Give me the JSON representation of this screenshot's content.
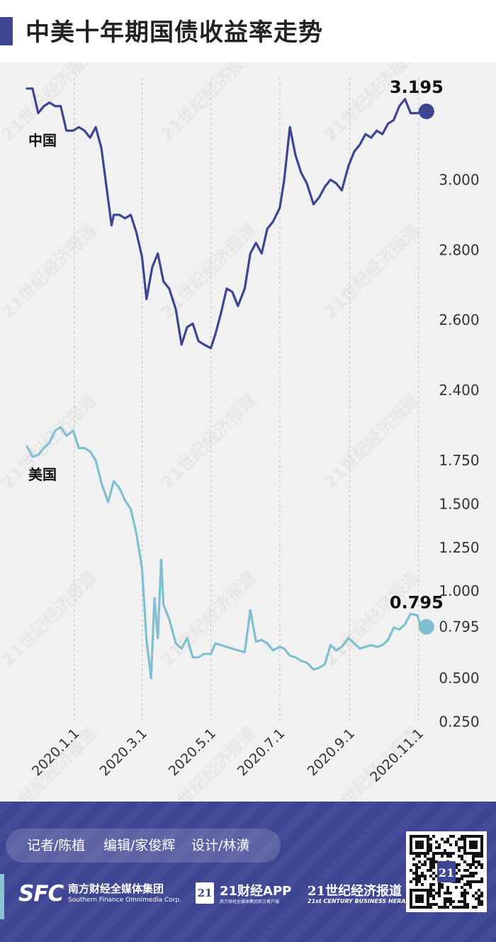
{
  "title": "中美十年期国债收益率走势",
  "credits": [
    "记者/陈植",
    "编辑/家俊辉",
    "设计/林潢"
  ],
  "logos": {
    "sfc_mark": "SFC",
    "sfc_cn": "南方财经全媒体集团",
    "sfc_en": "Southern Finance Omnimedia Corp.",
    "badge": "21",
    "app_name": "21财经APP",
    "app_sub": "南方财经全媒体集团官方客户端",
    "herald_cn": "21世纪经济报道",
    "herald_en": "21st CENTURY BUSINESS HERALD"
  },
  "watermark": "21世纪经济报道",
  "colors": {
    "china": "#3d4593",
    "us": "#7fbfd0",
    "header_accent": "#3d4593",
    "footer": "#3d4593",
    "panel": "#f1f1f1"
  },
  "chart_data": [
    {
      "type": "line",
      "series": [
        {
          "name": "中国",
          "x": [
            "2019-11-20",
            "2019-11-25",
            "2019-11-30",
            "2019-12-05",
            "2019-12-10",
            "2019-12-15",
            "2019-12-20",
            "2019-12-25",
            "2019-12-31",
            "2020-01-05",
            "2020-01-10",
            "2020-01-15",
            "2020-01-20",
            "2020-01-25",
            "2020-02-03",
            "2020-02-05",
            "2020-02-10",
            "2020-02-15",
            "2020-02-20",
            "2020-02-25",
            "2020-03-01",
            "2020-03-05",
            "2020-03-10",
            "2020-03-15",
            "2020-03-20",
            "2020-03-25",
            "2020-03-31",
            "2020-04-05",
            "2020-04-10",
            "2020-04-15",
            "2020-04-20",
            "2020-04-25",
            "2020-05-01",
            "2020-05-05",
            "2020-05-10",
            "2020-05-15",
            "2020-05-20",
            "2020-05-25",
            "2020-05-31",
            "2020-06-05",
            "2020-06-10",
            "2020-06-15",
            "2020-06-20",
            "2020-06-25",
            "2020-07-01",
            "2020-07-05",
            "2020-07-10",
            "2020-07-15",
            "2020-07-20",
            "2020-07-25",
            "2020-07-31",
            "2020-08-05",
            "2020-08-10",
            "2020-08-15",
            "2020-08-20",
            "2020-08-25",
            "2020-08-31",
            "2020-09-05",
            "2020-09-10",
            "2020-09-15",
            "2020-09-20",
            "2020-09-25",
            "2020-09-30",
            "2020-10-05",
            "2020-10-10",
            "2020-10-15",
            "2020-10-20",
            "2020-10-25",
            "2020-10-31",
            "2020-11-03"
          ],
          "values": [
            3.26,
            3.26,
            3.19,
            3.21,
            3.22,
            3.21,
            3.21,
            3.14,
            3.14,
            3.15,
            3.14,
            3.12,
            3.15,
            3.09,
            2.87,
            2.9,
            2.9,
            2.89,
            2.9,
            2.85,
            2.78,
            2.66,
            2.75,
            2.79,
            2.71,
            2.69,
            2.63,
            2.53,
            2.58,
            2.59,
            2.54,
            2.53,
            2.52,
            2.56,
            2.62,
            2.69,
            2.68,
            2.64,
            2.69,
            2.79,
            2.82,
            2.79,
            2.86,
            2.88,
            2.92,
            3.0,
            3.15,
            3.07,
            3.02,
            2.99,
            2.93,
            2.95,
            2.98,
            3.0,
            2.99,
            2.97,
            3.04,
            3.08,
            3.1,
            3.13,
            3.12,
            3.14,
            3.13,
            3.16,
            3.17,
            3.21,
            3.23,
            3.19,
            3.19,
            3.195
          ]
        }
      ],
      "end_label": "3.195",
      "y_ticks": [
        "3.000",
        "2.800",
        "2.600",
        "2.400"
      ],
      "y_tick_values": [
        3.0,
        2.8,
        2.6,
        2.4
      ],
      "ylim": [
        2.38,
        3.29
      ]
    },
    {
      "type": "line",
      "series": [
        {
          "name": "美国",
          "x": [
            "2019-11-20",
            "2019-11-25",
            "2019-11-30",
            "2019-12-05",
            "2019-12-10",
            "2019-12-15",
            "2019-12-20",
            "2019-12-25",
            "2019-12-31",
            "2020-01-05",
            "2020-01-10",
            "2020-01-15",
            "2020-01-20",
            "2020-01-25",
            "2020-01-31",
            "2020-02-05",
            "2020-02-10",
            "2020-02-15",
            "2020-02-20",
            "2020-02-25",
            "2020-03-01",
            "2020-03-05",
            "2020-03-09",
            "2020-03-12",
            "2020-03-15",
            "2020-03-18",
            "2020-03-20",
            "2020-03-25",
            "2020-03-31",
            "2020-04-05",
            "2020-04-10",
            "2020-04-15",
            "2020-04-20",
            "2020-04-25",
            "2020-05-01",
            "2020-05-05",
            "2020-05-10",
            "2020-05-15",
            "2020-05-20",
            "2020-05-25",
            "2020-05-31",
            "2020-06-05",
            "2020-06-10",
            "2020-06-15",
            "2020-06-20",
            "2020-06-25",
            "2020-07-01",
            "2020-07-05",
            "2020-07-10",
            "2020-07-15",
            "2020-07-20",
            "2020-07-25",
            "2020-07-31",
            "2020-08-05",
            "2020-08-10",
            "2020-08-15",
            "2020-08-20",
            "2020-08-25",
            "2020-08-31",
            "2020-09-05",
            "2020-09-10",
            "2020-09-15",
            "2020-09-20",
            "2020-09-25",
            "2020-09-30",
            "2020-10-05",
            "2020-10-10",
            "2020-10-15",
            "2020-10-20",
            "2020-10-25",
            "2020-10-31",
            "2020-11-03"
          ],
          "values": [
            1.83,
            1.77,
            1.78,
            1.82,
            1.85,
            1.92,
            1.94,
            1.89,
            1.92,
            1.82,
            1.82,
            1.8,
            1.75,
            1.62,
            1.51,
            1.63,
            1.59,
            1.52,
            1.47,
            1.33,
            1.13,
            0.72,
            0.5,
            0.96,
            0.73,
            1.18,
            0.92,
            0.84,
            0.7,
            0.67,
            0.73,
            0.62,
            0.62,
            0.64,
            0.64,
            0.7,
            0.69,
            0.68,
            0.67,
            0.66,
            0.65,
            0.89,
            0.71,
            0.72,
            0.7,
            0.66,
            0.68,
            0.67,
            0.63,
            0.62,
            0.6,
            0.59,
            0.55,
            0.56,
            0.58,
            0.69,
            0.66,
            0.68,
            0.73,
            0.7,
            0.67,
            0.68,
            0.69,
            0.68,
            0.69,
            0.72,
            0.79,
            0.78,
            0.81,
            0.87,
            0.86,
            0.795
          ]
        }
      ],
      "end_label": "0.795",
      "y_ticks": [
        "1.750",
        "1.500",
        "1.250",
        "1.000",
        "0.795",
        "0.500",
        "0.250"
      ],
      "y_tick_values": [
        1.75,
        1.5,
        1.25,
        1.0,
        0.795,
        0.5,
        0.25
      ],
      "ylim": [
        0.2,
        2.05
      ]
    }
  ],
  "x_axis": {
    "range": [
      "2019-11-15",
      "2020-11-10"
    ],
    "labels": [
      "2020.1.1",
      "2020.3.1",
      "2020.5.1",
      "2020.7.1",
      "2020.9.1",
      "2020.11.1"
    ],
    "dates": [
      "2020-01-01",
      "2020-03-01",
      "2020-05-01",
      "2020-07-01",
      "2020-09-01",
      "2020-11-01"
    ]
  }
}
